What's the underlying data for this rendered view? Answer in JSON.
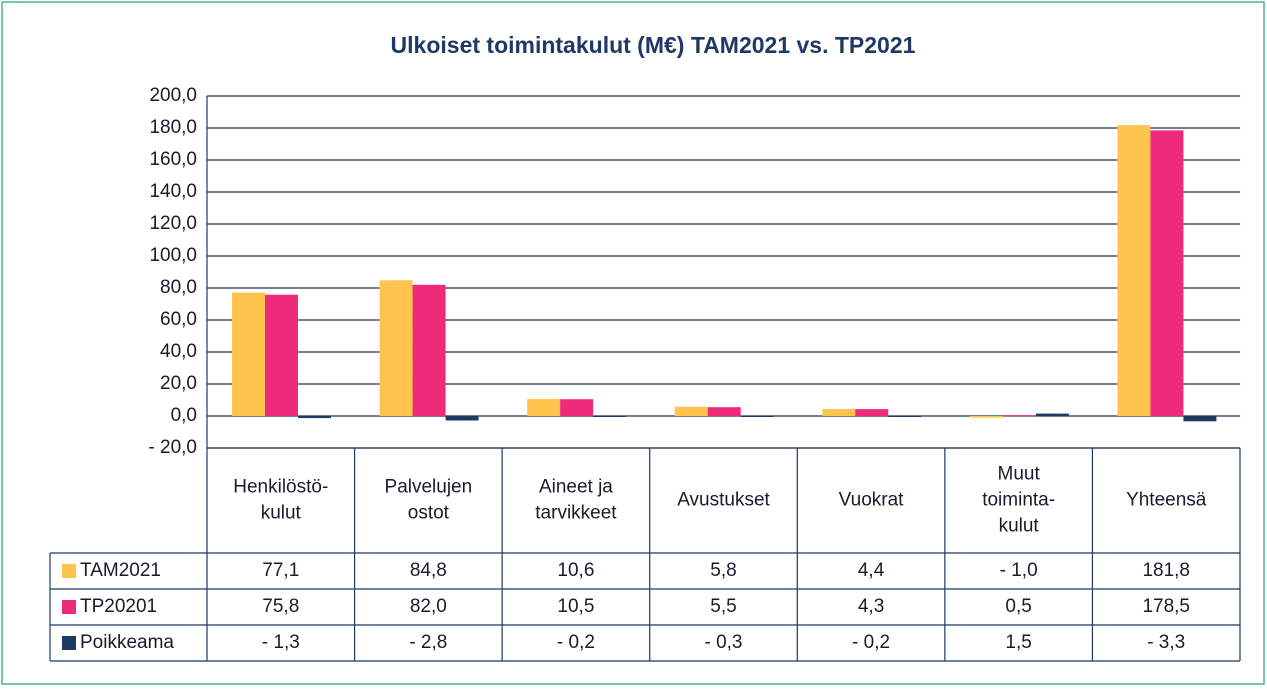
{
  "chart_data": {
    "type": "bar",
    "title": "Ulkoiset toimintakulut (M€) TAM2021 vs. TP2021",
    "categories": [
      [
        "Henkilöstö-",
        "kulut"
      ],
      [
        "Palvelujen",
        "ostot"
      ],
      [
        "Aineet ja",
        "tarvikkeet"
      ],
      [
        "Avustukset"
      ],
      [
        "Vuokrat"
      ],
      [
        "Muut",
        "toiminta-",
        "kulut"
      ],
      [
        "Yhteensä"
      ]
    ],
    "series": [
      {
        "name": "TAM2021",
        "color": "#ffc44d",
        "values": [
          77.1,
          84.8,
          10.6,
          5.8,
          4.4,
          -1.0,
          181.8
        ],
        "value_labels": [
          "77,1",
          "84,8",
          "10,6",
          "5,8",
          "4,4",
          "- 1,0",
          "181,8"
        ]
      },
      {
        "name": "TP20201",
        "color": "#ee2a7b",
        "values": [
          75.8,
          82.0,
          10.5,
          5.5,
          4.3,
          0.5,
          178.5
        ],
        "value_labels": [
          "75,8",
          "82,0",
          "10,5",
          "5,5",
          "4,3",
          "0,5",
          "178,5"
        ]
      },
      {
        "name": "Poikkeama",
        "color": "#1f3864",
        "values": [
          -1.3,
          -2.8,
          -0.2,
          -0.3,
          -0.2,
          1.5,
          -3.3
        ],
        "value_labels": [
          "- 1,3",
          "- 2,8",
          "- 0,2",
          "- 0,3",
          "- 0,2",
          "1,5",
          "- 3,3"
        ]
      }
    ],
    "ylim": [
      -20,
      200
    ],
    "yticks": [
      {
        "value": -20,
        "label": "- 20,0"
      },
      {
        "value": 0,
        "label": "0,0"
      },
      {
        "value": 20,
        "label": "20,0"
      },
      {
        "value": 40,
        "label": "40,0"
      },
      {
        "value": 60,
        "label": "60,0"
      },
      {
        "value": 80,
        "label": "80,0"
      },
      {
        "value": 100,
        "label": "100,0"
      },
      {
        "value": 120,
        "label": "120,0"
      },
      {
        "value": 140,
        "label": "140,0"
      },
      {
        "value": 160,
        "label": "160,0"
      },
      {
        "value": 180,
        "label": "180,0"
      },
      {
        "value": 200,
        "label": "200,0"
      }
    ],
    "grid": true
  }
}
